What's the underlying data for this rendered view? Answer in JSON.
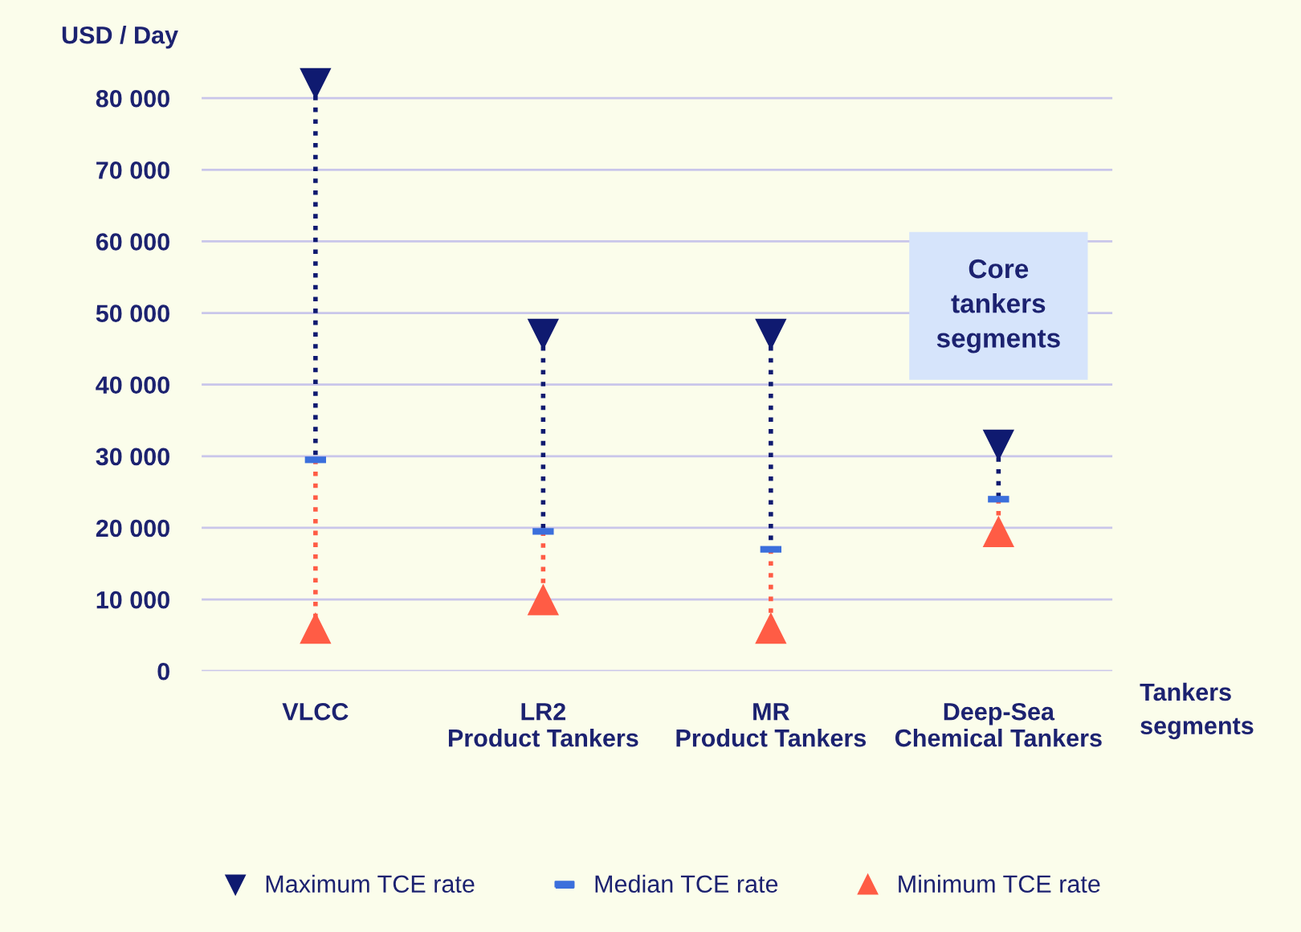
{
  "chart_data": {
    "type": "scatter",
    "ylabel": "USD / Day",
    "xlabel": "Tankers\nsegments",
    "categories": [
      "VLCC",
      "LR2\nProduct Tankers",
      "MR\nProduct Tankers",
      "Deep-Sea\nChemical Tankers"
    ],
    "series": [
      {
        "name": "Maximum TCE rate",
        "color": "#0f1a70",
        "marker": "triangle",
        "values": [
          82000,
          47000,
          47000,
          31500
        ]
      },
      {
        "name": "Median TCE rate",
        "color": "#3b6fdc",
        "marker": "square",
        "values": [
          29500,
          19500,
          17000,
          24000
        ]
      },
      {
        "name": "Minimum TCE rate",
        "color": "#ff5c45",
        "marker": "triangle",
        "values": [
          6000,
          10000,
          6000,
          19500
        ]
      }
    ],
    "ylim": [
      0,
      82000
    ],
    "yticks": [
      {
        "value": 0,
        "label": "0"
      },
      {
        "value": 10000,
        "label": "10 000"
      },
      {
        "value": 20000,
        "label": "20 000"
      },
      {
        "value": 30000,
        "label": "30 000"
      },
      {
        "value": 40000,
        "label": "40 000"
      },
      {
        "value": 50000,
        "label": "50 000"
      },
      {
        "value": 60000,
        "label": "60 000"
      },
      {
        "value": 70000,
        "label": "70 000"
      },
      {
        "value": 80000,
        "label": "80 000"
      }
    ],
    "grid": "y",
    "legend": "bottom",
    "annotations": [
      "Core\ntankers\nsegments"
    ]
  }
}
